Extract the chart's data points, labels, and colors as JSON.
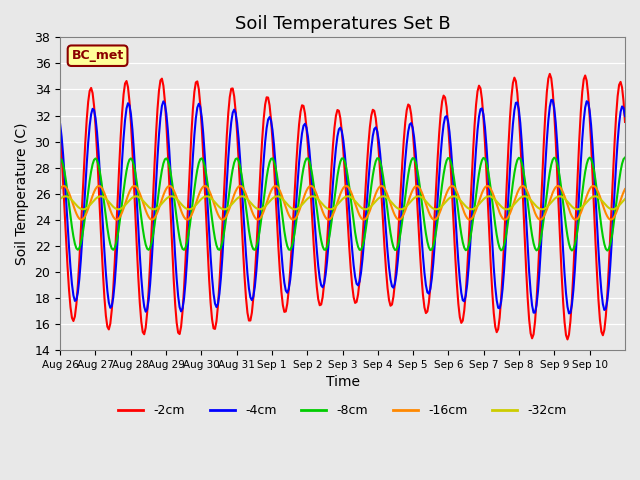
{
  "title": "Soil Temperatures Set B",
  "xlabel": "Time",
  "ylabel": "Soil Temperature (C)",
  "annotation": "BC_met",
  "ylim": [
    14,
    38
  ],
  "background_color": "#e8e8e8",
  "series": {
    "-2cm": {
      "color": "#ff0000",
      "lw": 1.5
    },
    "-4cm": {
      "color": "#0000ff",
      "lw": 1.5
    },
    "-8cm": {
      "color": "#00cc00",
      "lw": 1.5
    },
    "-16cm": {
      "color": "#ff8800",
      "lw": 1.5
    },
    "-32cm": {
      "color": "#cccc00",
      "lw": 1.5
    }
  },
  "xtick_labels": [
    "Aug 26",
    "Aug 27",
    "Aug 28",
    "Aug 29",
    "Aug 30",
    "Aug 31",
    "Sep 1",
    "Sep 2",
    "Sep 3",
    "Sep 4",
    "Sep 5",
    "Sep 6",
    "Sep 7",
    "Sep 8",
    "Sep 9",
    "Sep 10"
  ],
  "ytick_values": [
    14,
    16,
    18,
    20,
    22,
    24,
    26,
    28,
    30,
    32,
    34,
    36,
    38
  ]
}
